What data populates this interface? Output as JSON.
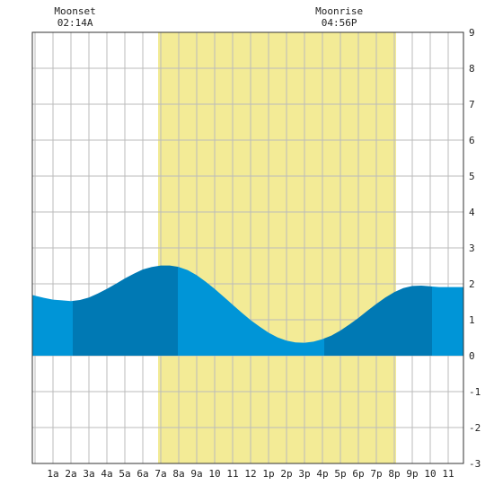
{
  "chart_data": {
    "type": "area",
    "x_ticks": [
      "1a",
      "2a",
      "3a",
      "4a",
      "5a",
      "6a",
      "7a",
      "8a",
      "9a",
      "10",
      "11",
      "12",
      "1p",
      "2p",
      "3p",
      "4p",
      "5p",
      "6p",
      "7p",
      "8p",
      "9p",
      "10",
      "11"
    ],
    "y_ticks": [
      "9",
      "8",
      "7",
      "6",
      "5",
      "4",
      "3",
      "2",
      "1",
      "0",
      "-1",
      "-2",
      "-3"
    ],
    "xlim": [
      -0.15,
      23.85
    ],
    "ylim": [
      -3,
      9
    ],
    "grid": true,
    "daylight": {
      "start": 6.85,
      "end": 20.1
    },
    "moon_events": [
      {
        "label": "Moonset",
        "time": "02:14A",
        "hour": 2.23
      },
      {
        "label": "Moonrise",
        "time": "04:56P",
        "hour": 16.93
      }
    ],
    "tide": {
      "x": [
        -0.15,
        0,
        0.5,
        1,
        1.5,
        2,
        2.5,
        3,
        3.5,
        4,
        4.5,
        5,
        5.5,
        6,
        6.5,
        7,
        7.5,
        8,
        8.5,
        9,
        9.5,
        10,
        10.5,
        11,
        11.5,
        12,
        12.5,
        13,
        13.5,
        14,
        14.5,
        15,
        15.5,
        16,
        16.5,
        17,
        17.5,
        18,
        18.5,
        19,
        19.5,
        20,
        20.5,
        21,
        21.5,
        22,
        22.5,
        23,
        23.5,
        23.85
      ],
      "y": [
        1.69,
        1.67,
        1.61,
        1.56,
        1.54,
        1.52,
        1.55,
        1.62,
        1.73,
        1.86,
        2.0,
        2.15,
        2.28,
        2.4,
        2.47,
        2.51,
        2.51,
        2.47,
        2.38,
        2.24,
        2.06,
        1.86,
        1.64,
        1.42,
        1.2,
        0.99,
        0.81,
        0.64,
        0.51,
        0.42,
        0.37,
        0.36,
        0.39,
        0.46,
        0.56,
        0.7,
        0.87,
        1.05,
        1.25,
        1.44,
        1.62,
        1.77,
        1.88,
        1.94,
        1.95,
        1.93,
        1.91,
        1.91,
        1.91,
        1.91
      ],
      "high_low_bands": [
        {
          "start": -0.15,
          "end": 2.1
        },
        {
          "start": 2.1,
          "end": 7.95
        },
        {
          "start": 7.95,
          "end": 16.1
        },
        {
          "start": 16.1,
          "end": 22.1
        },
        {
          "start": 22.1,
          "end": 23.85
        }
      ]
    },
    "colors": {
      "daylight": "#f3eb96",
      "tide_light": "#0095d7",
      "tide_dark": "#0079b4",
      "grid": "#bbbbbb",
      "frame": "#333333",
      "text": "#222222"
    }
  }
}
